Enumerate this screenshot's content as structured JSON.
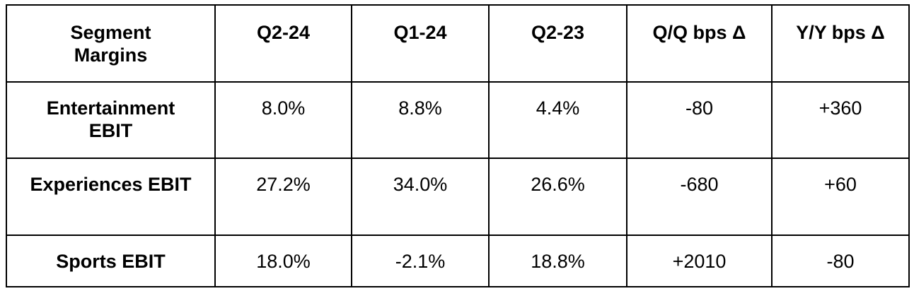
{
  "table": {
    "header": [
      "Segment Margins",
      "Q2-24",
      "Q1-24",
      "Q2-23",
      "Q/Q bps Δ",
      "Y/Y bps Δ"
    ],
    "rows": [
      [
        "Entertainment EBIT",
        "8.0%",
        "8.8%",
        "4.4%",
        "-80",
        "+360"
      ],
      [
        "Experiences EBIT",
        "27.2%",
        "34.0%",
        "26.6%",
        "-680",
        "+60"
      ],
      [
        "Sports EBIT",
        "18.0%",
        "-2.1%",
        "18.8%",
        "+2010",
        "-80"
      ]
    ]
  }
}
